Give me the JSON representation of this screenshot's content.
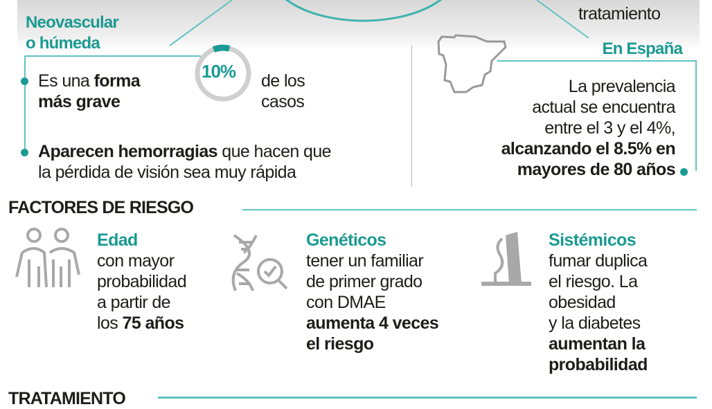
{
  "top_banner": {
    "partial_label": "tratamiento"
  },
  "neovascular": {
    "title_line1": "Neovascular",
    "title_line2": "o húmeda",
    "percent": "10%",
    "percent_value": 10,
    "point1": {
      "normal1": "Es una ",
      "bold1": "forma",
      "bold2": "más grave"
    },
    "percent_caption_line1": "de los",
    "percent_caption_line2": "casos",
    "point2": {
      "bold": "Aparecen hemorragias",
      "normal1": " que hacen que",
      "normal2": "la pérdida de visión sea muy rápida"
    }
  },
  "spain": {
    "title": "En España",
    "line1": "La prevalencia",
    "line2": "actual se encuentra",
    "line3": "entre el 3 y el 4%,",
    "bold1": "alcanzando el 8.5% en",
    "bold2": "mayores de 80 años"
  },
  "risk_factors": {
    "heading": "FACTORES DE RIESGO",
    "items": [
      {
        "icon": "elderly-couple-icon",
        "title": "Edad",
        "lines": [
          "con mayor",
          "probabilidad",
          "a partir de"
        ],
        "last_normal": "los ",
        "last_bold": "75 años"
      },
      {
        "icon": "dna-magnifier-icon",
        "title": "Genéticos",
        "lines": [
          "tener un familiar",
          "de primer grado",
          "con DMAE"
        ],
        "bold_lines": [
          "aumenta 4 veces",
          "el riesgo"
        ]
      },
      {
        "icon": "cigarette-icon",
        "title": "Sistémicos",
        "lines": [
          "fumar duplica",
          "el riesgo. La",
          "obesidad",
          "y la diabetes"
        ],
        "bold_lines": [
          "aumentan la",
          "probabilidad"
        ]
      }
    ]
  },
  "treatment": {
    "heading": "TRATAMIENTO"
  },
  "colors": {
    "accent": "#1a9a92",
    "line": "#5fc3bf",
    "icon_gray": "#a8a8a8"
  }
}
